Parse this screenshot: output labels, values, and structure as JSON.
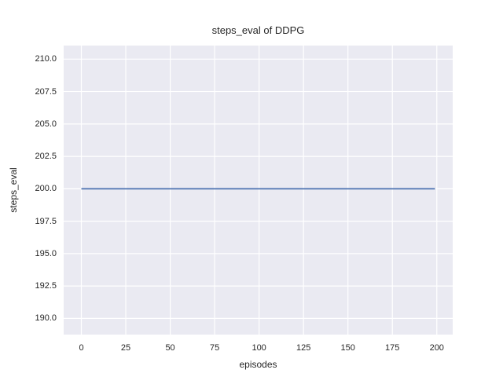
{
  "figure": {
    "background_color": "#ffffff",
    "axes_background_color": "#eaeaf2",
    "grid_color": "#ffffff",
    "text_color": "#262626"
  },
  "chart_data": {
    "type": "line",
    "title": "steps_eval of DDPG",
    "xlabel": "episodes",
    "ylabel": "steps_eval",
    "grid": true,
    "legend": false,
    "xlim": [
      -9.95,
      208.95
    ],
    "ylim": [
      188.75,
      211.05
    ],
    "x_ticks": [
      0,
      25,
      50,
      75,
      100,
      125,
      150,
      175,
      200
    ],
    "x_tick_labels": [
      "0",
      "25",
      "50",
      "75",
      "100",
      "125",
      "150",
      "175",
      "200"
    ],
    "y_ticks": [
      190.0,
      192.5,
      195.0,
      197.5,
      200.0,
      202.5,
      205.0,
      207.5,
      210.0
    ],
    "y_tick_labels": [
      "190.0",
      "192.5",
      "195.0",
      "197.5",
      "200.0",
      "202.5",
      "205.0",
      "207.5",
      "210.0"
    ],
    "series": [
      {
        "name": "DDPG steps_eval",
        "color": "#4c72b0",
        "line_width": 1.8,
        "x": [
          0,
          199
        ],
        "y": [
          200.0,
          200.0
        ]
      }
    ]
  }
}
